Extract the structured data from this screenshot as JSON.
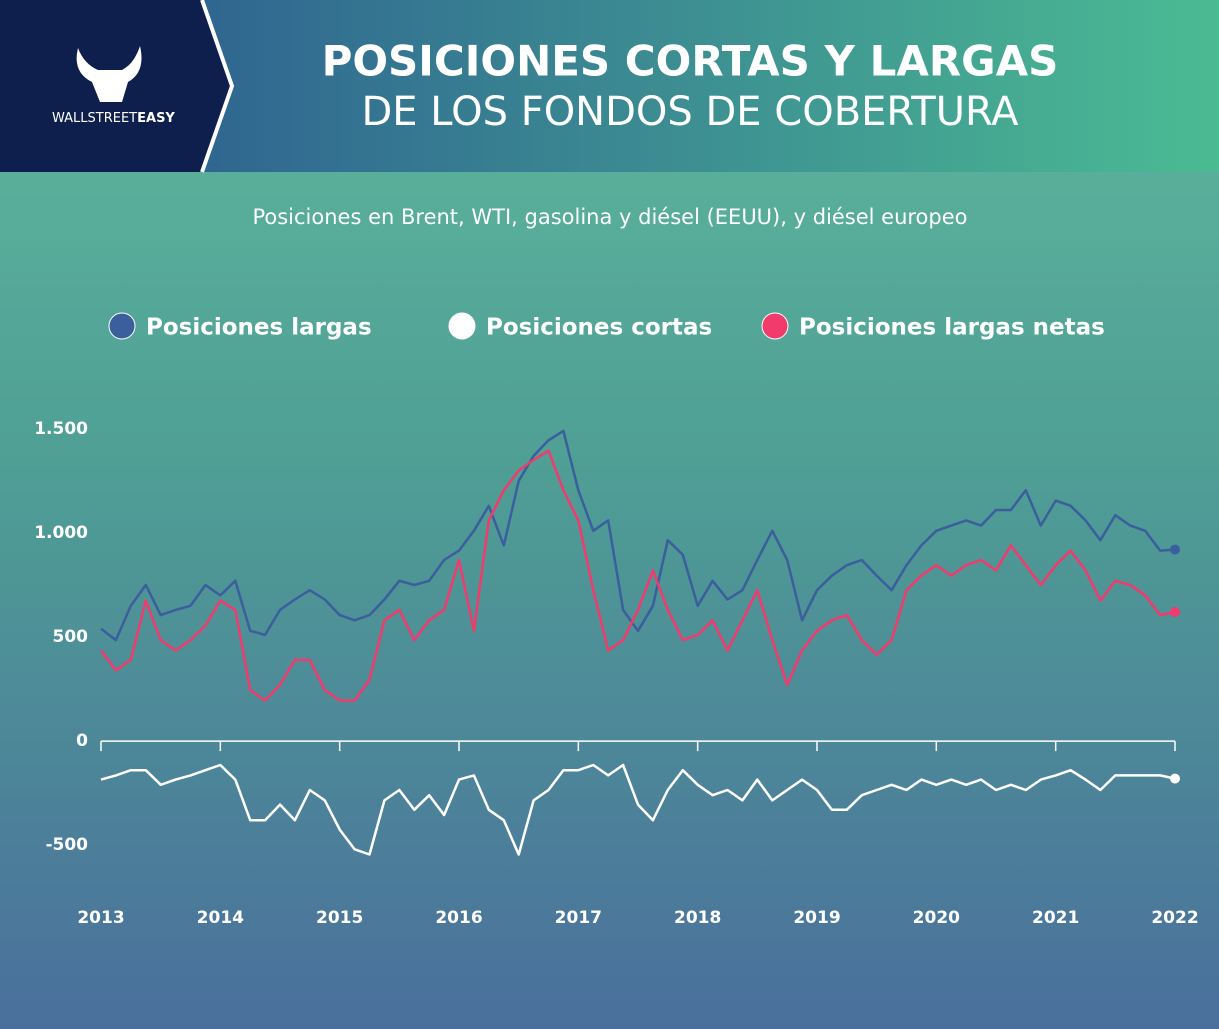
{
  "logo": {
    "text_light": "WALLSTREET",
    "text_bold": "EASY"
  },
  "chart_data": {
    "type": "line",
    "title": "POSICIONES CORTAS Y LARGAS",
    "title_line2": "DE LOS FONDOS DE COBERTURA",
    "subtitle": "Posiciones en Brent, WTI, gasolina y diésel (EEUU), y diésel europeo",
    "x": [
      2013,
      2013.125,
      2013.25,
      2013.375,
      2013.5,
      2013.625,
      2013.75,
      2013.875,
      2014,
      2014.125,
      2014.25,
      2014.375,
      2014.5,
      2014.625,
      2014.75,
      2014.875,
      2015,
      2015.125,
      2015.25,
      2015.375,
      2015.5,
      2015.625,
      2015.75,
      2015.875,
      2016,
      2016.125,
      2016.25,
      2016.375,
      2016.5,
      2016.625,
      2016.75,
      2016.875,
      2017,
      2017.125,
      2017.25,
      2017.375,
      2017.5,
      2017.625,
      2017.75,
      2017.875,
      2018,
      2018.125,
      2018.25,
      2018.375,
      2018.5,
      2018.625,
      2018.75,
      2018.875,
      2019,
      2019.125,
      2019.25,
      2019.375,
      2019.5,
      2019.625,
      2019.75,
      2019.875,
      2020,
      2020.125,
      2020.25,
      2020.375,
      2020.5,
      2020.625,
      2020.75,
      2020.875,
      2021,
      2021.125,
      2021.25,
      2021.375,
      2021.5,
      2021.625,
      2021.75,
      2021.875,
      2022
    ],
    "series": [
      {
        "name": "Posiciones largas",
        "color": "#3b5e9c",
        "values": [
          540,
          485,
          650,
          750,
          605,
          630,
          650,
          750,
          700,
          770,
          530,
          510,
          630,
          680,
          725,
          680,
          605,
          580,
          605,
          680,
          770,
          750,
          770,
          870,
          915,
          1010,
          1130,
          940,
          1250,
          1370,
          1445,
          1490,
          1205,
          1010,
          1060,
          630,
          530,
          650,
          965,
          895,
          650,
          770,
          680,
          725,
          870,
          1010,
          870,
          580,
          725,
          795,
          845,
          870,
          795,
          725,
          845,
          940,
          1010,
          1035,
          1060,
          1035,
          1110,
          1110,
          1205,
          1035,
          1155,
          1130,
          1060,
          965,
          1085,
          1035,
          1010,
          915,
          920
        ]
      },
      {
        "name": "Posiciones cortas",
        "color": "#ffffff",
        "values": [
          -185,
          -165,
          -140,
          -140,
          -210,
          -185,
          -165,
          -140,
          -115,
          -185,
          -380,
          -380,
          -305,
          -380,
          -235,
          -285,
          -425,
          -520,
          -545,
          -285,
          -235,
          -330,
          -260,
          -355,
          -185,
          -165,
          -330,
          -380,
          -545,
          -285,
          -235,
          -140,
          -140,
          -115,
          -165,
          -115,
          -305,
          -380,
          -235,
          -140,
          -210,
          -260,
          -235,
          -285,
          -185,
          -285,
          -235,
          -185,
          -235,
          -330,
          -330,
          -260,
          -235,
          -210,
          -235,
          -185,
          -210,
          -185,
          -210,
          -185,
          -235,
          -210,
          -235,
          -185,
          -165,
          -140,
          -185,
          -235,
          -165,
          -165,
          -165,
          -165,
          -180
        ]
      },
      {
        "name": "Posiciones largas netas",
        "color": "#f23a6c",
        "values": [
          435,
          340,
          390,
          675,
          485,
          435,
          485,
          555,
          675,
          630,
          245,
          195,
          270,
          390,
          390,
          245,
          195,
          195,
          295,
          580,
          630,
          485,
          580,
          630,
          870,
          530,
          1060,
          1205,
          1300,
          1350,
          1395,
          1205,
          1060,
          725,
          435,
          485,
          630,
          820,
          630,
          485,
          510,
          580,
          435,
          580,
          725,
          485,
          270,
          435,
          530,
          580,
          605,
          485,
          415,
          485,
          725,
          795,
          845,
          795,
          845,
          870,
          820,
          940,
          845,
          750,
          845,
          915,
          820,
          675,
          770,
          750,
          700,
          605,
          620
        ]
      }
    ],
    "xlim": [
      2013,
      2022
    ],
    "xticks": [
      2013,
      2014,
      2015,
      2016,
      2017,
      2018,
      2019,
      2020,
      2021,
      2022
    ],
    "ylim": [
      -600,
      1600
    ],
    "yticks": [
      -500,
      0,
      500,
      {
        "value": 1000,
        "label": "1.000"
      },
      {
        "value": 1500,
        "label": "1.500"
      }
    ]
  }
}
